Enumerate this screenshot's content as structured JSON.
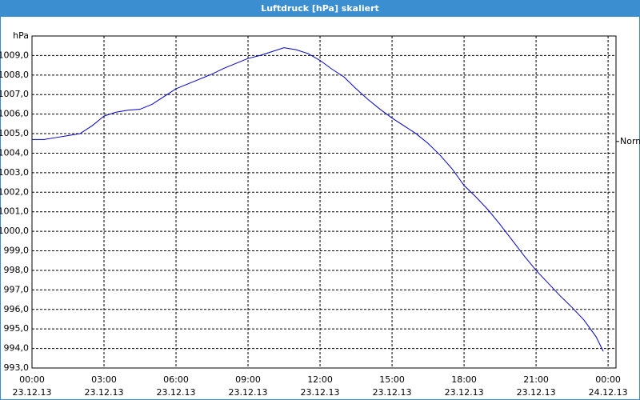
{
  "chart_data": {
    "type": "line",
    "title": "Luftdruck [hPa] skaliert",
    "y_unit": "hPa",
    "reference_label": "Normal",
    "reference_value": 1004.6,
    "x": [
      0,
      0.5,
      1,
      1.5,
      2,
      2.5,
      3,
      3.5,
      4,
      4.5,
      5,
      5.5,
      6,
      6.5,
      7,
      7.5,
      8,
      8.5,
      9,
      9.5,
      10,
      10.5,
      11,
      11.5,
      12,
      12.5,
      13,
      13.5,
      14,
      14.5,
      15,
      15.5,
      16,
      16.5,
      17,
      17.5,
      18,
      18.5,
      19,
      19.5,
      20,
      20.5,
      21,
      21.5,
      22,
      22.5,
      23,
      23.5,
      23.8
    ],
    "series": [
      {
        "name": "Luftdruck",
        "color": "#0000cc",
        "values": [
          1004.7,
          1004.7,
          1004.8,
          1004.9,
          1005.0,
          1005.4,
          1005.9,
          1006.1,
          1006.2,
          1006.25,
          1006.5,
          1006.9,
          1007.3,
          1007.55,
          1007.8,
          1008.05,
          1008.35,
          1008.6,
          1008.85,
          1009.0,
          1009.2,
          1009.4,
          1009.3,
          1009.1,
          1008.75,
          1008.3,
          1007.9,
          1007.3,
          1006.75,
          1006.25,
          1005.8,
          1005.4,
          1005.0,
          1004.5,
          1003.9,
          1003.2,
          1002.35,
          1001.75,
          1001.1,
          1000.35,
          999.55,
          998.75,
          998.0,
          997.35,
          996.7,
          996.1,
          995.45,
          994.6,
          993.85
        ]
      }
    ],
    "xlim": [
      0,
      24.33
    ],
    "ylim": [
      993,
      1010
    ],
    "xticks": [
      {
        "value": 0,
        "label": "00:00"
      },
      {
        "value": 3,
        "label": "03:00"
      },
      {
        "value": 6,
        "label": "06:00"
      },
      {
        "value": 9,
        "label": "09:00"
      },
      {
        "value": 12,
        "label": "12:00"
      },
      {
        "value": 15,
        "label": "15:00"
      },
      {
        "value": 18,
        "label": "18:00"
      },
      {
        "value": 21,
        "label": "21:00"
      },
      {
        "value": 24,
        "label": "00:00"
      }
    ],
    "x_dates": [
      "23.12.13",
      "23.12.13",
      "23.12.13",
      "23.12.13",
      "23.12.13",
      "23.12.13",
      "23.12.13",
      "23.12.13",
      "24.12.13"
    ],
    "yticks": [
      {
        "value": 993,
        "label": "993,0"
      },
      {
        "value": 994,
        "label": "994,0"
      },
      {
        "value": 995,
        "label": "995,0"
      },
      {
        "value": 996,
        "label": "996,0"
      },
      {
        "value": 997,
        "label": "997,0"
      },
      {
        "value": 998,
        "label": "998,0"
      },
      {
        "value": 999,
        "label": "999,0"
      },
      {
        "value": 1000,
        "label": "1000,0"
      },
      {
        "value": 1001,
        "label": "1001,0"
      },
      {
        "value": 1002,
        "label": "1002,0"
      },
      {
        "value": 1003,
        "label": "1003,0"
      },
      {
        "value": 1004,
        "label": "1004,0"
      },
      {
        "value": 1005,
        "label": "1005,0"
      },
      {
        "value": 1006,
        "label": "1006,0"
      },
      {
        "value": 1007,
        "label": "1007,0"
      },
      {
        "value": 1008,
        "label": "1008,0"
      },
      {
        "value": 1009,
        "label": "1009,0"
      }
    ],
    "grid": true
  }
}
